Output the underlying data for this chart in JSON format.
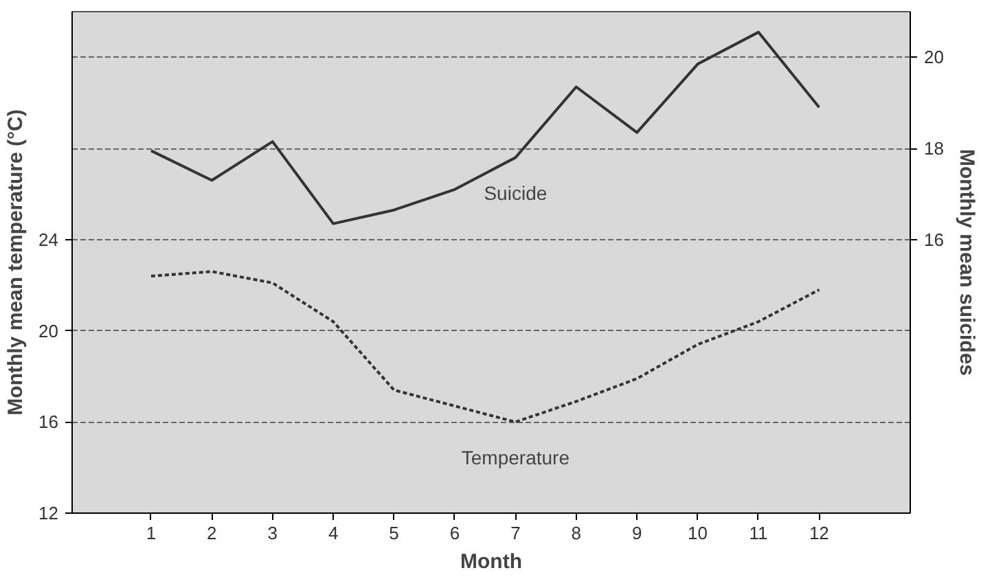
{
  "chart_data": {
    "type": "line",
    "xlabel": "Month",
    "ylabel": "Monthly mean temperature (°C)",
    "y2label": "Monthly mean suicides",
    "x": [
      1,
      2,
      3,
      4,
      5,
      6,
      7,
      8,
      9,
      10,
      11,
      12
    ],
    "series": [
      {
        "name": "Suicide",
        "color": "#333333",
        "axis": "y2",
        "line_style": "solid",
        "values": [
          17.95,
          17.3,
          18.15,
          16.35,
          16.65,
          17.1,
          17.8,
          19.35,
          18.35,
          19.85,
          20.55,
          18.9
        ]
      },
      {
        "name": "Temperature",
        "color": "#333333",
        "line_style": "dotted",
        "values": [
          22.4,
          22.6,
          22.1,
          20.4,
          17.4,
          16.7,
          16.0,
          16.9,
          17.9,
          19.4,
          20.4,
          21.8
        ]
      }
    ],
    "xlim": [
      -0.3,
      13.5
    ],
    "xticks": [
      1,
      2,
      3,
      4,
      5,
      6,
      7,
      8,
      9,
      10,
      11,
      12
    ],
    "ylim": [
      12,
      34
    ],
    "yticks": [
      12,
      16,
      20,
      24
    ],
    "y2lim": [
      10,
      21
    ],
    "y2ticks": [
      16,
      18,
      20
    ],
    "grid": "y"
  }
}
